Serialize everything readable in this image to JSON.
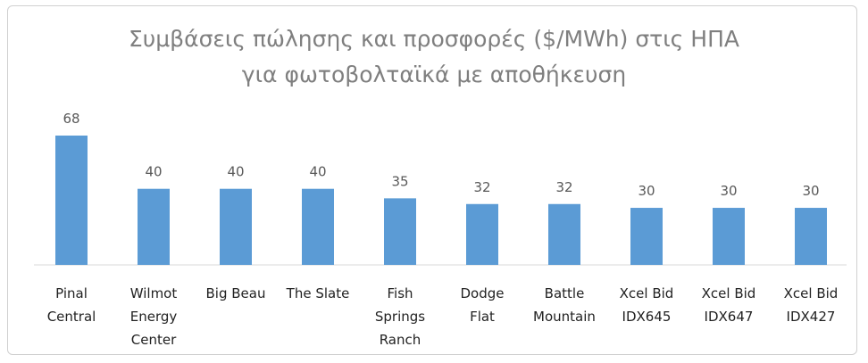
{
  "chart_data": {
    "type": "bar",
    "title": "Συμβάσεις πώλησης και προσφορές ($/MWh) στις ΗΠΑ\nγια φωτοβολταϊκά  με αποθήκευση",
    "categories": [
      "Pinal\nCentral",
      "Wilmot\nEnergy\nCenter",
      "Big Beau",
      "The Slate",
      "Fish\nSprings\nRanch",
      "Dodge\nFlat",
      "Battle\nMountain",
      "Xcel Bid\nIDX645",
      "Xcel Bid\nIDX647",
      "Xcel Bid\nIDX427"
    ],
    "values": [
      68,
      40,
      40,
      40,
      35,
      32,
      32,
      30,
      30,
      30
    ],
    "color": "#5b9bd5"
  }
}
